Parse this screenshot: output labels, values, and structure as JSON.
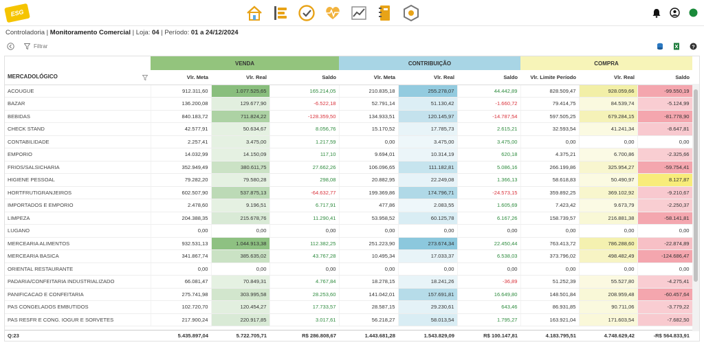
{
  "app": {
    "logo_text": "ESG"
  },
  "breadcrumb": {
    "section": "Controladoria",
    "page": "Monitoramento Comercial",
    "loja_label": "Loja:",
    "loja": "04",
    "periodo_label": "Período:",
    "periodo": "01 a 24/12/2024"
  },
  "toolbar": {
    "filter_label": "Filtrar"
  },
  "groups": {
    "venda": "VENDA",
    "contribuicao": "CONTRIBUIÇÃO",
    "compra": "COMPRA"
  },
  "columns": {
    "mercadologico": "MERCADOLÓGICO",
    "vlr_meta": "Vlr. Meta",
    "vlr_real": "Vlr. Real",
    "saldo": "Saldo",
    "vlr_limite": "Vlr. Limite Período"
  },
  "rows": [
    [
      "ACOUGUE",
      "912.311,60",
      "1.077.525,65",
      "165.214,05",
      "210.835,18",
      "255.278,07",
      "44.442,89",
      "828.509,47",
      "928.059,66",
      "-99.550,19"
    ],
    [
      "BAZAR",
      "136.200,08",
      "129.677,90",
      "-6.522,18",
      "52.791,14",
      "51.130,42",
      "-1.660,72",
      "79.414,75",
      "84.539,74",
      "-5.124,99"
    ],
    [
      "BEBIDAS",
      "840.183,72",
      "711.824,22",
      "-128.359,50",
      "134.933,51",
      "120.145,97",
      "-14.787,54",
      "597.505,25",
      "679.284,15",
      "-81.778,90"
    ],
    [
      "CHECK STAND",
      "42.577,91",
      "50.634,67",
      "8.056,76",
      "15.170,52",
      "17.785,73",
      "2.615,21",
      "32.593,54",
      "41.241,34",
      "-8.647,81"
    ],
    [
      "CONTABILIDADE",
      "2.257,41",
      "3.475,00",
      "1.217,59",
      "0,00",
      "3.475,00",
      "3.475,00",
      "0,00",
      "0,00",
      "0,00"
    ],
    [
      "EMPORIO",
      "14.032,99",
      "14.150,09",
      "117,10",
      "9.694,01",
      "10.314,19",
      "620,18",
      "4.375,21",
      "6.700,86",
      "-2.325,66"
    ],
    [
      "FRIOS/SALSICHARIA",
      "352.949,49",
      "380.611,75",
      "27.662,26",
      "106.096,65",
      "111.182,81",
      "5.086,16",
      "266.199,86",
      "325.954,27",
      "-59.754,41"
    ],
    [
      "HIGIENE PESSOAL",
      "79.282,20",
      "79.580,28",
      "298,08",
      "20.882,95",
      "22.249,08",
      "1.366,13",
      "58.618,83",
      "50.490,97",
      "8.127,87"
    ],
    [
      "HORTFRUTIGRANJEIROS",
      "602.507,90",
      "537.875,13",
      "-64.632,77",
      "199.369,86",
      "174.796,71",
      "-24.573,15",
      "359.892,25",
      "369.102,92",
      "-9.210,67"
    ],
    [
      "IMPORTADOS E EMPORIO",
      "2.478,60",
      "9.196,51",
      "6.717,91",
      "477,86",
      "2.083,55",
      "1.605,69",
      "7.423,42",
      "9.673,79",
      "-2.250,37"
    ],
    [
      "LIMPEZA",
      "204.388,35",
      "215.678,76",
      "11.290,41",
      "53.958,52",
      "60.125,78",
      "6.167,26",
      "158.739,57",
      "216.881,38",
      "-58.141,81"
    ],
    [
      "LUGANO",
      "0,00",
      "0,00",
      "0,00",
      "0,00",
      "0,00",
      "0,00",
      "0,00",
      "0,00",
      "0,00"
    ],
    [
      "MERCEARIA ALIMENTOS",
      "932.531,13",
      "1.044.913,38",
      "112.382,25",
      "251.223,90",
      "273.674,34",
      "22.450,44",
      "763.413,72",
      "786.288,60",
      "-22.874,89"
    ],
    [
      "MERCEARIA BASICA",
      "341.867,74",
      "385.635,02",
      "43.767,28",
      "10.495,34",
      "17.033,37",
      "6.538,03",
      "373.796,02",
      "498.482,49",
      "-124.686,47"
    ],
    [
      "ORIENTAL RESTAURANTE",
      "0,00",
      "0,00",
      "0,00",
      "0,00",
      "0,00",
      "0,00",
      "0,00",
      "0,00",
      "0,00"
    ],
    [
      "PADARIA/CONFEITARIA INDUSTRIALIZADO",
      "66.081,47",
      "70.849,31",
      "4.767,84",
      "18.278,15",
      "18.241,26",
      "-36,89",
      "51.252,39",
      "55.527,80",
      "-4.275,41"
    ],
    [
      "PANIFICACAO E CONFEITARIA",
      "275.741,98",
      "303.995,58",
      "28.253,60",
      "141.042,01",
      "157.691,81",
      "16.649,80",
      "148.501,84",
      "208.959,48",
      "-60.457,64"
    ],
    [
      "PAS CONGELADOS EMBUTIDOS",
      "102.720,70",
      "120.454,27",
      "17.733,57",
      "28.587,15",
      "29.230,61",
      "643,46",
      "86.931,85",
      "90.711,06",
      "-3.779,22"
    ],
    [
      "PAS RESFR E CONG. IOGUR E SORVETES",
      "217.900,24",
      "220.917,85",
      "3.017,61",
      "56.218,27",
      "58.013,54",
      "1.795,27",
      "163.921,04",
      "171.603,54",
      "-7.682,50"
    ]
  ],
  "totals": {
    "count": "Q:23",
    "values": [
      "5.435.897,04",
      "5.722.705,71",
      "R$ 286.808,67",
      "1.443.681,28",
      "1.543.829,09",
      "R$ 100.147,81",
      "4.183.795,51",
      "4.748.629,42",
      "-R$ 564.833,91"
    ]
  },
  "colors": {
    "venda_header": "#93c47d",
    "contrib_header": "#a8d5e5",
    "compra_header": "#f7f4b8",
    "positive": "#2e8b3e",
    "negative": "#d9323b",
    "status_green": "#1a8a3a"
  },
  "icons": {
    "nav": [
      "home-icon",
      "list-bars-icon",
      "clock-check-icon",
      "heart-pulse-icon",
      "line-chart-icon",
      "notebook-icon",
      "gear-network-icon"
    ],
    "right": [
      "bell-icon",
      "user-circle-icon",
      "status-dot"
    ],
    "toolbar": [
      "back-circle-icon",
      "filter-icon",
      "database-export-icon",
      "excel-export-icon",
      "help-icon"
    ]
  }
}
